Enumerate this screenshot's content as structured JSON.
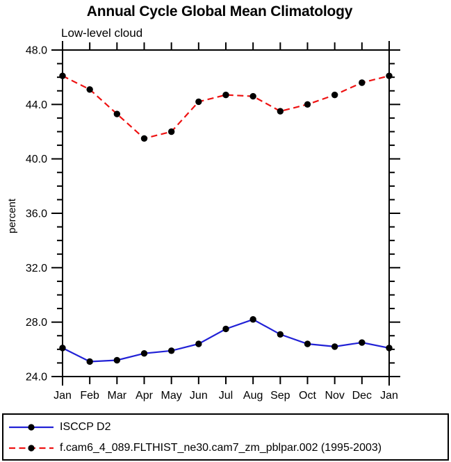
{
  "chart_data": {
    "type": "line",
    "title": "Annual Cycle Global Mean Climatology",
    "subtitle": "Low-level cloud",
    "ylabel": "percent",
    "categories": [
      "Jan",
      "Feb",
      "Mar",
      "Apr",
      "May",
      "Jun",
      "Jul",
      "Aug",
      "Sep",
      "Oct",
      "Nov",
      "Dec",
      "Jan"
    ],
    "ylim": [
      24.0,
      48.0
    ],
    "ytick_major": 4,
    "ytick_minor": 1,
    "ytick_labels": [
      "24.0",
      "28.0",
      "32.0",
      "36.0",
      "40.0",
      "44.0",
      "48.0"
    ],
    "grid": false,
    "legend_position": "bottom-box",
    "axis_color": "#000000",
    "marker_color": "#000000",
    "series": [
      {
        "name": "ISCCP D2",
        "color": "#2121d6",
        "style": "solid",
        "marker": "circle",
        "values": [
          26.1,
          25.1,
          25.2,
          25.7,
          25.9,
          26.4,
          27.5,
          28.2,
          27.1,
          26.4,
          26.2,
          26.5,
          26.1
        ]
      },
      {
        "name": "f.cam6_4_089.FLTHIST_ne30.cam7_zm_pblpar.002 (1995-2003)",
        "color": "#ee1212",
        "style": "dashed",
        "marker": "circle",
        "values": [
          46.1,
          45.1,
          43.3,
          41.5,
          42.0,
          44.2,
          44.7,
          44.6,
          43.5,
          44.0,
          44.7,
          45.6,
          46.1
        ]
      }
    ]
  }
}
